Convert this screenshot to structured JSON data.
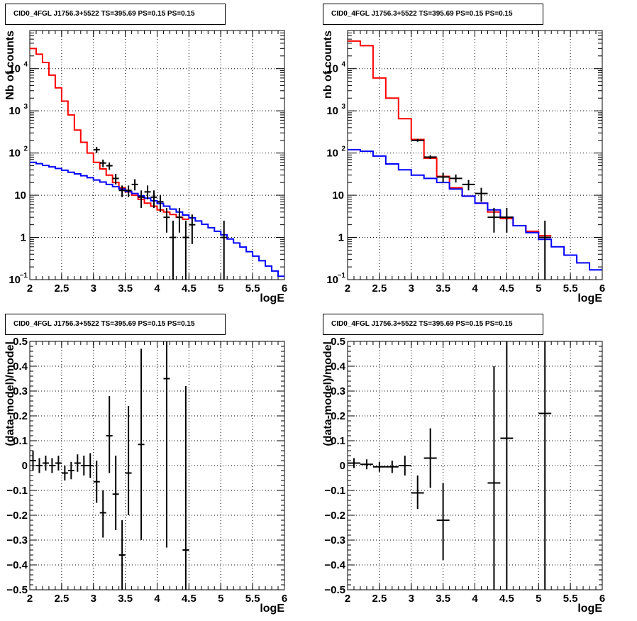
{
  "chart_data": [
    {
      "type": "line",
      "title": "CID0_4FGL J1756.3+5522 TS=395.69 PS=0.15 PS=0.15",
      "xlabel": "logE",
      "ylabel": "Nb of counts",
      "xlim": [
        2,
        6
      ],
      "ylim": [
        0.1,
        80000
      ],
      "yscale": "log",
      "grid": true,
      "xticks": [
        "2",
        "2.5",
        "3",
        "3.5",
        "4",
        "4.5",
        "5",
        "5.5",
        "6"
      ],
      "yticks": [
        {
          "value": 0.1,
          "label": "10",
          "exp": "−1"
        },
        {
          "value": 1,
          "label": "1",
          "exp": ""
        },
        {
          "value": 10,
          "label": "10",
          "exp": ""
        },
        {
          "value": 100,
          "label": "10",
          "exp": "2"
        },
        {
          "value": 1000,
          "label": "10",
          "exp": "3"
        },
        {
          "value": 10000,
          "label": "10",
          "exp": "4"
        }
      ],
      "series": [
        {
          "color": "#ff0000",
          "style": "step",
          "bin_edges": [
            2.0,
            2.1,
            2.2,
            2.3,
            2.4,
            2.5,
            2.6,
            2.7,
            2.8,
            2.9,
            3.0,
            3.1,
            3.2,
            3.3,
            3.4,
            3.5,
            3.6,
            3.7,
            3.8,
            3.9,
            4.0,
            4.1,
            4.2,
            4.3,
            4.4,
            4.5
          ],
          "values": [
            30000,
            22000,
            14000,
            7000,
            3500,
            1700,
            800,
            350,
            180,
            100,
            60,
            42,
            30,
            20,
            15,
            12,
            10,
            8,
            6.5,
            5.5,
            4.5,
            4.0,
            3.5,
            3.0,
            2.7
          ]
        },
        {
          "color": "#0000ff",
          "style": "step",
          "bin_edges": [
            2.0,
            2.1,
            2.2,
            2.3,
            2.4,
            2.5,
            2.6,
            2.7,
            2.8,
            2.9,
            3.0,
            3.1,
            3.2,
            3.3,
            3.4,
            3.5,
            3.6,
            3.7,
            3.8,
            3.9,
            4.0,
            4.1,
            4.2,
            4.3,
            4.4,
            4.5,
            4.6,
            4.7,
            4.8,
            4.9,
            5.0,
            5.1,
            5.2,
            5.3,
            5.4,
            5.5,
            5.6,
            5.7,
            5.8,
            5.9,
            6.0
          ],
          "values": [
            60,
            56,
            51,
            47,
            43,
            39,
            35,
            32,
            29,
            26,
            23,
            20.5,
            18,
            16,
            14,
            12.3,
            11,
            9.7,
            8.5,
            7.4,
            6.4,
            5.5,
            4.7,
            4.0,
            3.4,
            2.9,
            2.45,
            2.05,
            1.7,
            1.4,
            1.15,
            0.92,
            0.74,
            0.59,
            0.46,
            0.36,
            0.28,
            0.21,
            0.16,
            0.12
          ]
        },
        {
          "color": "#000000",
          "style": "errorbar",
          "xerr": 0.05,
          "x": [
            3.05,
            3.15,
            3.25,
            3.35,
            3.45,
            3.55,
            3.65,
            3.75,
            3.85,
            3.95,
            4.05,
            4.15,
            4.25,
            4.35,
            4.45,
            4.55,
            5.05
          ],
          "y": [
            120,
            58,
            50,
            25,
            13,
            13,
            18,
            9,
            12,
            9,
            7,
            3,
            1,
            3,
            1,
            2,
            1
          ],
          "ylo": [
            100,
            46,
            40,
            18,
            9,
            9,
            13,
            5,
            8,
            5,
            4,
            1.3,
            0.1,
            1.3,
            0.1,
            0.7,
            0.1
          ],
          "yhi": [
            140,
            70,
            60,
            32,
            17,
            17,
            24,
            13,
            17,
            13,
            10,
            5,
            2.5,
            5,
            2.5,
            3.5,
            2.5
          ]
        }
      ]
    },
    {
      "type": "line",
      "title": "CID0_4FGL J1756.3+5522 TS=395.69 PS=0.15 PS=0.15",
      "xlabel": "logE",
      "ylabel": "nb of counts",
      "xlim": [
        2,
        6
      ],
      "ylim": [
        0.1,
        80000
      ],
      "yscale": "log",
      "grid": true,
      "xticks": [
        "2",
        "2.5",
        "3",
        "3.5",
        "4",
        "4.5",
        "5",
        "5.5",
        "6"
      ],
      "yticks": [
        {
          "value": 0.1,
          "label": "10",
          "exp": "−1"
        },
        {
          "value": 1,
          "label": "1",
          "exp": ""
        },
        {
          "value": 10,
          "label": "10",
          "exp": ""
        },
        {
          "value": 100,
          "label": "10",
          "exp": "2"
        },
        {
          "value": 1000,
          "label": "10",
          "exp": "3"
        },
        {
          "value": 10000,
          "label": "10",
          "exp": "4"
        }
      ],
      "series": [
        {
          "color": "#ff0000",
          "style": "step",
          "bin_edges": [
            2.0,
            2.2,
            2.4,
            2.6,
            2.8,
            3.0,
            3.2,
            3.4,
            3.6,
            3.8,
            4.0,
            4.2,
            4.4,
            4.6,
            4.8,
            5.0,
            5.2
          ],
          "values": [
            45000,
            35000,
            6000,
            2000,
            650,
            210,
            75,
            28,
            15,
            9.5,
            6.5,
            4.0,
            2.8,
            1.9,
            1.4,
            1.1
          ]
        },
        {
          "color": "#0000ff",
          "style": "step",
          "bin_edges": [
            2.0,
            2.2,
            2.4,
            2.6,
            2.8,
            3.0,
            3.2,
            3.4,
            3.6,
            3.8,
            4.0,
            4.2,
            4.4,
            4.6,
            4.8,
            5.0,
            5.2,
            5.4,
            5.6,
            5.8,
            6.0
          ],
          "values": [
            120,
            110,
            85,
            55,
            40,
            30,
            25,
            20,
            14,
            9.5,
            6.5,
            4.5,
            3.0,
            1.9,
            1.3,
            0.9,
            0.6,
            0.38,
            0.25,
            0.17
          ]
        },
        {
          "color": "#000000",
          "style": "errorbar",
          "xerr": 0.1,
          "x": [
            3.1,
            3.3,
            3.5,
            3.7,
            3.9,
            4.1,
            4.3,
            4.5,
            5.1
          ],
          "y": [
            200,
            80,
            27,
            25,
            18,
            11,
            3,
            3,
            1
          ],
          "ylo": [
            185,
            72,
            20,
            20,
            13,
            7,
            1.3,
            1.3,
            0.1
          ],
          "yhi": [
            215,
            88,
            34,
            31,
            23,
            15,
            5,
            5,
            2.5
          ]
        }
      ]
    },
    {
      "type": "scatter",
      "title": "CID0_4FGL J1756.3+5522 TS=395.69 PS=0.15 PS=0.15",
      "xlabel": "logE",
      "ylabel": "(data-model)/model",
      "xlim": [
        2,
        6
      ],
      "ylim": [
        -0.5,
        0.5
      ],
      "grid": true,
      "xticks": [
        "2",
        "2.5",
        "3",
        "3.5",
        "4",
        "4.5",
        "5",
        "5.5",
        "6"
      ],
      "yticks": [
        "−0.5",
        "−0.4",
        "−0.3",
        "−0.2",
        "−0.1",
        "0",
        "0.1",
        "0.2",
        "0.3",
        "0.4",
        "0.5"
      ],
      "series": [
        {
          "color": "#000000",
          "style": "errorbar",
          "xerr": 0.05,
          "x": [
            2.05,
            2.15,
            2.25,
            2.35,
            2.45,
            2.55,
            2.65,
            2.75,
            2.85,
            2.95,
            3.05,
            3.15,
            3.25,
            3.35,
            3.45,
            3.55,
            3.75,
            4.15,
            4.45
          ],
          "y": [
            0.02,
            0.0,
            0.01,
            0.0,
            0.01,
            -0.03,
            -0.02,
            0.01,
            0.0,
            0.0,
            -0.065,
            -0.19,
            0.12,
            -0.115,
            -0.36,
            -0.03,
            0.085,
            0.35,
            -0.34
          ],
          "ylo": [
            -0.02,
            -0.03,
            -0.02,
            -0.03,
            -0.02,
            -0.06,
            -0.055,
            -0.025,
            -0.04,
            -0.05,
            -0.15,
            -0.29,
            -0.03,
            -0.26,
            -0.5,
            -0.2,
            -0.3,
            -0.33,
            -0.5
          ],
          "yhi": [
            0.06,
            0.03,
            0.04,
            0.03,
            0.04,
            0.0,
            0.015,
            0.045,
            0.04,
            0.05,
            0.02,
            -0.1,
            0.28,
            0.04,
            -0.22,
            0.24,
            0.47,
            0.5,
            0.32
          ]
        }
      ]
    },
    {
      "type": "scatter",
      "title": "CID0_4FGL J1756.3+5522 TS=395.69 PS=0.15 PS=0.15",
      "xlabel": "logE",
      "ylabel": "(data-model)/model",
      "xlim": [
        2,
        6
      ],
      "ylim": [
        -0.5,
        0.5
      ],
      "grid": true,
      "xticks": [
        "2",
        "2.5",
        "3",
        "3.5",
        "4",
        "4.5",
        "5",
        "5.5",
        "6"
      ],
      "yticks": [
        "−0.5",
        "−0.4",
        "−0.3",
        "−0.2",
        "−0.1",
        "0",
        "0.1",
        "0.2",
        "0.3",
        "0.4",
        "0.5"
      ],
      "series": [
        {
          "color": "#000000",
          "style": "errorbar",
          "xerr": 0.1,
          "x": [
            2.1,
            2.3,
            2.5,
            2.7,
            2.9,
            3.1,
            3.3,
            3.5,
            4.3,
            4.5,
            5.1
          ],
          "y": [
            0.01,
            0.005,
            -0.005,
            -0.005,
            0.0,
            -0.11,
            0.03,
            -0.22,
            -0.07,
            0.11,
            0.21
          ],
          "ylo": [
            -0.01,
            -0.015,
            -0.025,
            -0.03,
            -0.04,
            -0.175,
            -0.09,
            -0.38,
            -0.5,
            -0.5,
            -0.5
          ],
          "yhi": [
            0.03,
            0.025,
            0.015,
            0.02,
            0.04,
            -0.04,
            0.15,
            -0.07,
            0.4,
            0.5,
            0.5
          ]
        }
      ]
    }
  ]
}
